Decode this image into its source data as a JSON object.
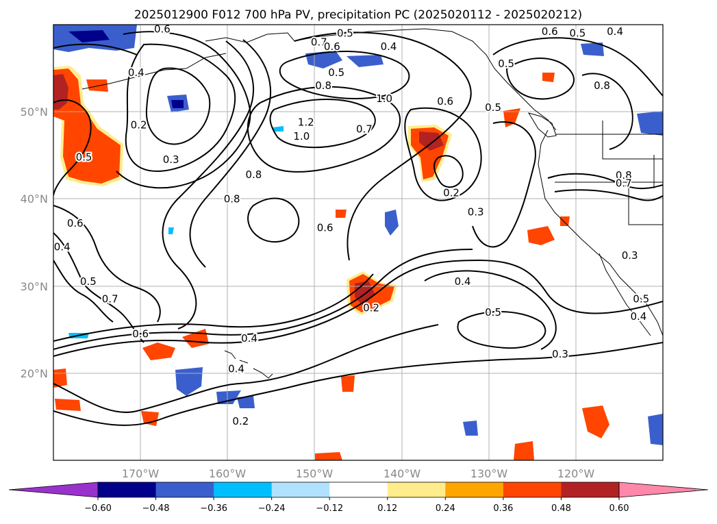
{
  "chart_data": {
    "type": "map-contour",
    "title": "2025012900 F012 700 hPa PV, precipitation PC (2025020112 - 2025020212)",
    "lon_range": [
      -180,
      -110
    ],
    "lat_range": [
      10,
      60
    ],
    "x_ticks": [
      {
        "lon": -170,
        "label": "170°W"
      },
      {
        "lon": -160,
        "label": "160°W"
      },
      {
        "lon": -150,
        "label": "150°W"
      },
      {
        "lon": -140,
        "label": "140°W"
      },
      {
        "lon": -130,
        "label": "130°W"
      },
      {
        "lon": -120,
        "label": "120°W"
      }
    ],
    "y_ticks": [
      {
        "lat": 20,
        "label": "20°N"
      },
      {
        "lat": 30,
        "label": "30°N"
      },
      {
        "lat": 40,
        "label": "40°N"
      },
      {
        "lat": 50,
        "label": "50°N"
      }
    ],
    "grid": true,
    "colorbar": {
      "levels": [
        -0.6,
        -0.48,
        -0.36,
        -0.24,
        -0.12,
        0.12,
        0.24,
        0.36,
        0.48,
        0.6
      ],
      "tick_labels": [
        "−0.60",
        "−0.48",
        "−0.36",
        "−0.24",
        "−0.12",
        "0.12",
        "0.24",
        "0.36",
        "0.48",
        "0.60"
      ],
      "under_color": "#9932cc",
      "over_color": "#ff88aa",
      "colors": [
        "#00008b",
        "#3a5fcd",
        "#00bfff",
        "#b0e2ff",
        "#ffffff",
        "#ffec8b",
        "#ffa500",
        "#ff4500",
        "#b22222"
      ],
      "extend": "both"
    },
    "contour_labels": [
      {
        "text": "0.6",
        "lon": -167.5,
        "lat": 59.5
      },
      {
        "text": "0.4",
        "lon": -170.5,
        "lat": 54.5
      },
      {
        "text": "0.2",
        "lon": -170.2,
        "lat": 48.5
      },
      {
        "text": "0.3",
        "lon": -166.5,
        "lat": 44.5
      },
      {
        "text": "0.5",
        "lon": -176.5,
        "lat": 44.8
      },
      {
        "text": "0.6",
        "lon": -177.5,
        "lat": 37.2
      },
      {
        "text": "0.4",
        "lon": -179.0,
        "lat": 34.5
      },
      {
        "text": "0.5",
        "lon": -176.0,
        "lat": 30.5
      },
      {
        "text": "0.7",
        "lon": -173.5,
        "lat": 28.5
      },
      {
        "text": "0.6",
        "lon": -170.0,
        "lat": 24.5
      },
      {
        "text": "0.4",
        "lon": -157.5,
        "lat": 24.0
      },
      {
        "text": "0.4",
        "lon": -159.0,
        "lat": 20.5
      },
      {
        "text": "0.2",
        "lon": -158.5,
        "lat": 14.5
      },
      {
        "text": "0.7",
        "lon": -149.5,
        "lat": 58.0
      },
      {
        "text": "0.6",
        "lon": -148.0,
        "lat": 57.5
      },
      {
        "text": "0.5",
        "lon": -146.5,
        "lat": 59.0
      },
      {
        "text": "0.4",
        "lon": -141.5,
        "lat": 57.5
      },
      {
        "text": "0.5",
        "lon": -147.5,
        "lat": 54.5
      },
      {
        "text": "0.8",
        "lon": -149.0,
        "lat": 53.0
      },
      {
        "text": "1.0",
        "lon": -142.0,
        "lat": 51.5
      },
      {
        "text": "1.2",
        "lon": -151.0,
        "lat": 48.8
      },
      {
        "text": "1.0",
        "lon": -151.5,
        "lat": 47.2
      },
      {
        "text": "0.8",
        "lon": -157.0,
        "lat": 42.8
      },
      {
        "text": "0.8",
        "lon": -159.5,
        "lat": 40.0
      },
      {
        "text": "0.6",
        "lon": -148.8,
        "lat": 36.7
      },
      {
        "text": "0.7",
        "lon": -144.3,
        "lat": 48.0
      },
      {
        "text": "0.6",
        "lon": -135.0,
        "lat": 51.2
      },
      {
        "text": "0.2",
        "lon": -134.3,
        "lat": 40.7
      },
      {
        "text": "0.3",
        "lon": -131.5,
        "lat": 38.5
      },
      {
        "text": "0.4",
        "lon": -133.0,
        "lat": 30.5
      },
      {
        "text": "0.5",
        "lon": -129.5,
        "lat": 27.0
      },
      {
        "text": "0.3",
        "lon": -121.8,
        "lat": 22.2
      },
      {
        "text": "0.2",
        "lon": -143.5,
        "lat": 27.5
      },
      {
        "text": "0.5",
        "lon": -128.0,
        "lat": 55.5
      },
      {
        "text": "0.5",
        "lon": -129.5,
        "lat": 50.5
      },
      {
        "text": "0.8",
        "lon": -117.0,
        "lat": 53.0
      },
      {
        "text": "0.6",
        "lon": -123.0,
        "lat": 59.2
      },
      {
        "text": "0.5",
        "lon": -119.8,
        "lat": 59.0
      },
      {
        "text": "0.4",
        "lon": -115.5,
        "lat": 59.2
      },
      {
        "text": "0.8",
        "lon": -114.5,
        "lat": 42.7
      },
      {
        "text": "0.7",
        "lon": -114.5,
        "lat": 41.8
      },
      {
        "text": "0.3",
        "lon": -113.8,
        "lat": 33.5
      },
      {
        "text": "0.5",
        "lon": -112.5,
        "lat": 28.5
      },
      {
        "text": "0.4",
        "lon": -112.8,
        "lat": 26.5
      }
    ]
  }
}
